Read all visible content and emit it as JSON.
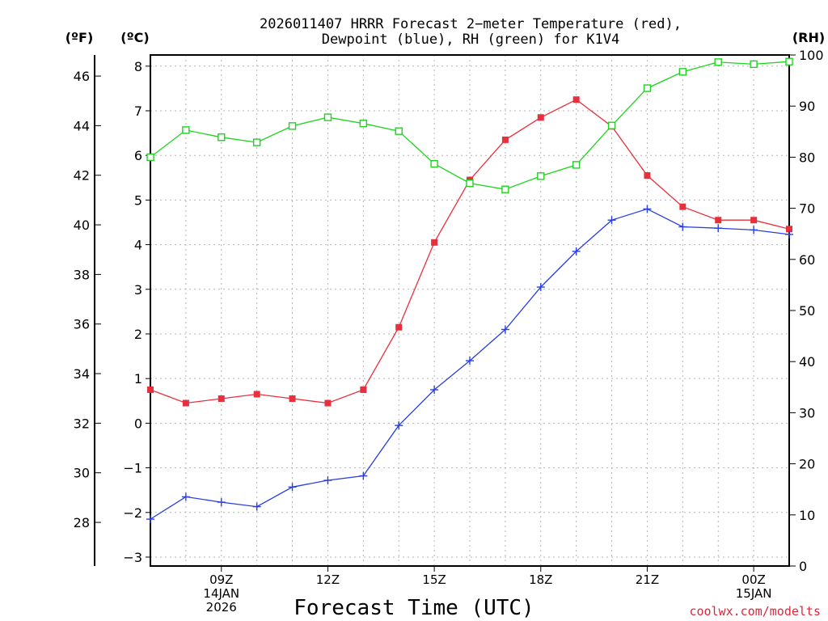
{
  "title_line1": "2026011407 HRRR Forecast 2−meter Temperature (red),",
  "title_line2": "Dewpoint (blue), RH (green) for K1V4",
  "unit_f": "(ºF)",
  "unit_c": "(ºC)",
  "unit_rh": "(RH)",
  "xlabel": "Forecast Time (UTC)",
  "credit": "coolwx.com/modelts",
  "colors": {
    "temperature": "#e8303c",
    "dewpoint": "#2a3fe0",
    "rh": "#1ed41e",
    "credit": "#e0263a"
  },
  "chart_data": {
    "type": "line",
    "title": "2026011407 HRRR Forecast 2-meter Temperature (red), Dewpoint (blue), RH (green) for K1V4",
    "xlabel": "Forecast Time (UTC)",
    "x_hours_utc": [
      7,
      8,
      9,
      10,
      11,
      12,
      13,
      14,
      15,
      16,
      17,
      18,
      19,
      20,
      21,
      22,
      23,
      24,
      25
    ],
    "xlim": [
      7,
      25
    ],
    "celsius_axis": {
      "label": "(ºC)",
      "ylim": [
        -3.2,
        8.25
      ],
      "ticks": [
        "−3",
        "−2",
        "−1",
        "0",
        "1",
        "2",
        "3",
        "4",
        "5",
        "6",
        "7",
        "8"
      ],
      "tick_values": [
        -3,
        -2,
        -1,
        0,
        1,
        2,
        3,
        4,
        5,
        6,
        7,
        8
      ]
    },
    "fahrenheit_axis": {
      "label": "(ºF)",
      "ticks": [
        "28",
        "30",
        "32",
        "34",
        "36",
        "38",
        "40",
        "42",
        "44",
        "46"
      ],
      "tick_values": [
        28,
        30,
        32,
        34,
        36,
        38,
        40,
        42,
        44,
        46
      ]
    },
    "rh_axis": {
      "label": "(RH)",
      "ylim": [
        0,
        100
      ],
      "ticks": [
        "0",
        "10",
        "20",
        "30",
        "40",
        "50",
        "60",
        "70",
        "80",
        "90",
        "100"
      ],
      "tick_values": [
        0,
        10,
        20,
        30,
        40,
        50,
        60,
        70,
        80,
        90,
        100
      ]
    },
    "x_ticks": [
      {
        "hour": 9,
        "lines": [
          "09Z",
          "14JAN",
          "2026"
        ]
      },
      {
        "hour": 12,
        "lines": [
          "12Z"
        ]
      },
      {
        "hour": 15,
        "lines": [
          "15Z"
        ]
      },
      {
        "hour": 18,
        "lines": [
          "18Z"
        ]
      },
      {
        "hour": 21,
        "lines": [
          "21Z"
        ]
      },
      {
        "hour": 24,
        "lines": [
          "00Z",
          "15JAN"
        ]
      }
    ],
    "series": [
      {
        "name": "Temperature",
        "axis": "celsius",
        "marker": "filled-square",
        "color": "#e8303c",
        "values": [
          0.75,
          0.45,
          0.55,
          0.65,
          0.55,
          0.45,
          0.75,
          2.15,
          4.05,
          5.45,
          6.35,
          6.85,
          7.25,
          6.65,
          5.55,
          4.85,
          4.55,
          4.55,
          4.35
        ]
      },
      {
        "name": "Dewpoint",
        "axis": "celsius",
        "marker": "plus",
        "color": "#2a3fe0",
        "values": [
          -2.15,
          -1.65,
          -1.77,
          -1.87,
          -1.43,
          -1.28,
          -1.18,
          -0.05,
          0.75,
          1.4,
          2.1,
          3.05,
          3.85,
          4.55,
          4.8,
          4.4,
          4.37,
          4.33,
          4.23
        ]
      },
      {
        "name": "RH",
        "axis": "rh",
        "marker": "open-square",
        "color": "#1ed41e",
        "values": [
          80,
          85.3,
          83.9,
          82.9,
          86.1,
          87.8,
          86.6,
          85.1,
          78.7,
          74.9,
          73.7,
          76.3,
          78.5,
          86.2,
          93.5,
          96.7,
          98.6,
          98.2,
          98.7
        ]
      }
    ]
  }
}
